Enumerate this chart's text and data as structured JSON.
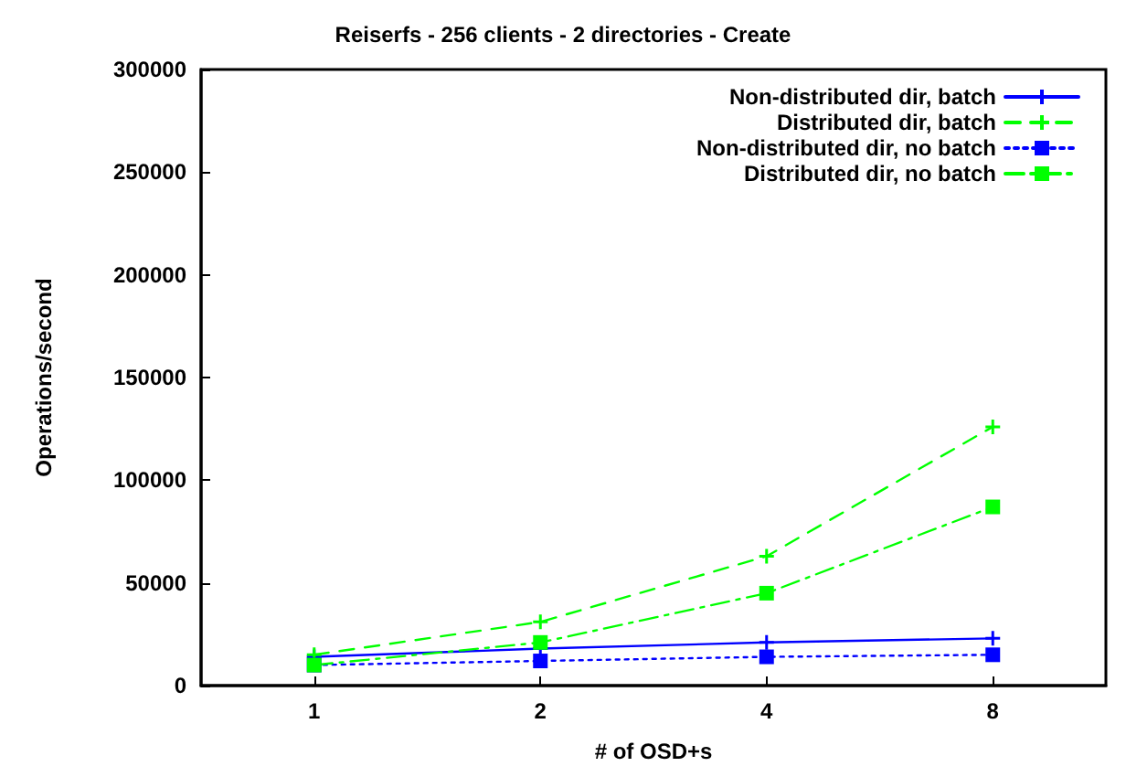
{
  "chart_data": {
    "type": "line",
    "title": "Reiserfs - 256 clients - 2 directories - Create",
    "xlabel": "# of OSD+s",
    "ylabel": "Operations/second",
    "categories": [
      "1",
      "2",
      "4",
      "8"
    ],
    "series": [
      {
        "name": "Non-distributed dir, batch",
        "color": "#0000ff",
        "line_style": "solid",
        "marker": "cross",
        "values": [
          14000,
          18000,
          21000,
          23000
        ]
      },
      {
        "name": "Distributed dir, batch",
        "color": "#00ff00",
        "line_style": "dashed",
        "marker": "cross",
        "values": [
          15000,
          31000,
          63000,
          126000
        ]
      },
      {
        "name": "Non-distributed dir, no batch",
        "color": "#0000ff",
        "line_style": "dotted",
        "marker": "square",
        "values": [
          10000,
          12000,
          14000,
          15000
        ]
      },
      {
        "name": "Distributed dir, no batch",
        "color": "#00ff00",
        "line_style": "dashdot",
        "marker": "square",
        "values": [
          10000,
          21000,
          45000,
          87000
        ]
      }
    ],
    "ylim": [
      0,
      300000
    ],
    "yticks": [
      0,
      50000,
      100000,
      150000,
      200000,
      250000,
      300000
    ],
    "grid": false,
    "legend": "top right"
  }
}
